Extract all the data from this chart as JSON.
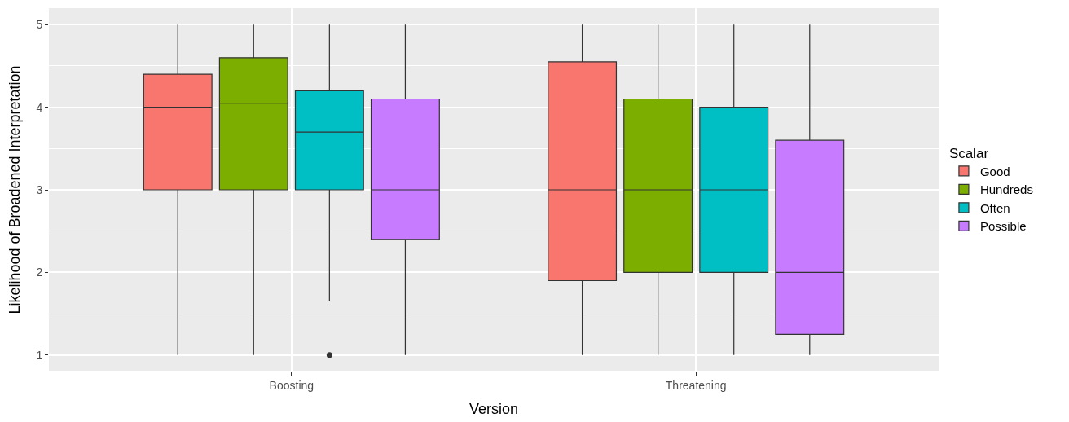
{
  "chart_data": {
    "type": "box",
    "xlabel": "Version",
    "ylabel": "Likelihood of Broadened Interpretation",
    "legend_title": "Scalar",
    "categories": [
      "Boosting",
      "Threatening"
    ],
    "ylim": [
      0.8,
      5.2
    ],
    "yticks": [
      1,
      2,
      3,
      4,
      5
    ],
    "grid": true,
    "legend": "right",
    "series": [
      {
        "name": "Good",
        "color": "#F8766D",
        "boxes": [
          {
            "low": 1,
            "q1": 3.0,
            "median": 4.0,
            "q3": 4.4,
            "high": 5
          },
          {
            "low": 1,
            "q1": 1.9,
            "median": 3.0,
            "q3": 4.55,
            "high": 5
          }
        ]
      },
      {
        "name": "Hundreds",
        "color": "#7CAE00",
        "boxes": [
          {
            "low": 1,
            "q1": 3.0,
            "median": 4.05,
            "q3": 4.6,
            "high": 5
          },
          {
            "low": 1,
            "q1": 2.0,
            "median": 3.0,
            "q3": 4.1,
            "high": 5
          }
        ]
      },
      {
        "name": "Often",
        "color": "#00BFC4",
        "boxes": [
          {
            "low": 1.65,
            "q1": 3.0,
            "median": 3.7,
            "q3": 4.2,
            "high": 5,
            "outliers": [
              1
            ]
          },
          {
            "low": 1,
            "q1": 2.0,
            "median": 3.0,
            "q3": 4.0,
            "high": 5
          }
        ]
      },
      {
        "name": "Possible",
        "color": "#C77CFF",
        "boxes": [
          {
            "low": 1,
            "q1": 2.4,
            "median": 3.0,
            "q3": 4.1,
            "high": 5
          },
          {
            "low": 1,
            "q1": 1.25,
            "median": 2.0,
            "q3": 3.6,
            "high": 5
          }
        ]
      }
    ]
  }
}
